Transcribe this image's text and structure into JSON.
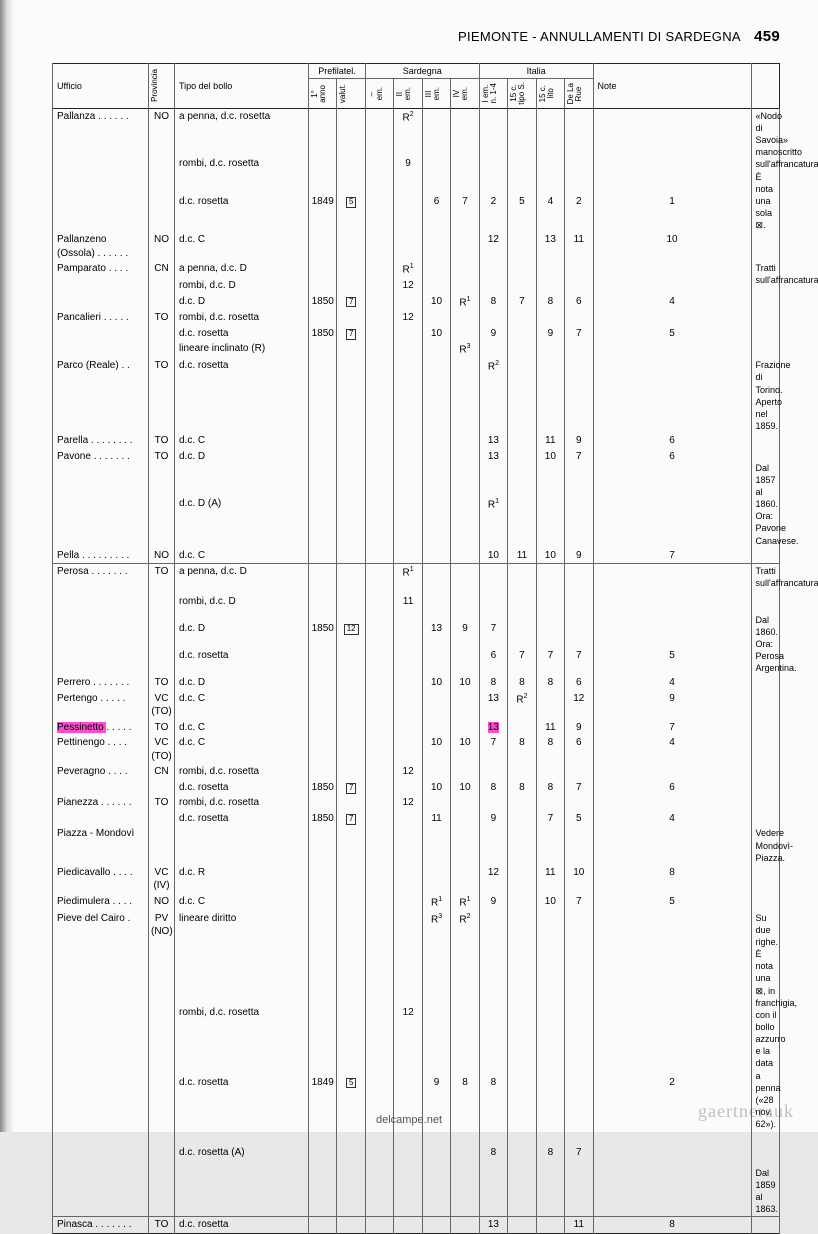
{
  "header": {
    "title": "PIEMONTE - ANNULLAMENTI DI SARDEGNA",
    "page": "459"
  },
  "columns": {
    "ufficio": "Ufficio",
    "provincia": "Provincia",
    "tipo": "Tipo del bollo",
    "prefilatel": "Prefilatel.",
    "sardegna": "Sardegna",
    "italia": "Italia",
    "note": "Note",
    "anno": "1°\nanno",
    "valut": "valut.",
    "em_dash": "–\nem.",
    "em2": "II\nem.",
    "em3": "III\nem.",
    "em4": "IV\nem.",
    "iem": "I em.\nn. 1-4",
    "c15s": "15 c.\ntipo S.",
    "c15l": "15 c.\nlito",
    "delarue": "De La\nRue"
  },
  "rows": [
    {
      "uff": "Pallanza  . . . . . .",
      "prov": "NO",
      "tipo": [
        "a penna, d.c. rosetta",
        "",
        "rombi, d.c. rosetta",
        "d.c. rosetta"
      ],
      "anno": [
        "",
        "",
        "",
        "1849"
      ],
      "valut": [
        "",
        "",
        "",
        "[5]"
      ],
      "c": [
        [
          "",
          "R²",
          "",
          "",
          "",
          "",
          "",
          "",
          "",
          ""
        ],
        [
          "",
          "",
          "",
          "",
          "",
          "",
          "",
          "",
          "",
          ""
        ],
        [
          "",
          "9",
          "",
          "",
          "",
          "",
          "",
          "",
          "",
          ""
        ],
        [
          "",
          "",
          "6",
          "7",
          "2",
          "5",
          "4",
          "2",
          "1",
          ""
        ]
      ],
      "note": "«Nodo di Savoia» manoscritto sull'affrancatura.\nÈ nota una sola ⊠."
    },
    {
      "uff": "Pallanzeno\n(Ossola)  . . . . . .",
      "prov": "NO",
      "tipo": [
        "d.c. C"
      ],
      "anno": [
        ""
      ],
      "valut": [
        ""
      ],
      "c": [
        [
          "",
          "",
          "",
          "",
          "12",
          "",
          "13",
          "11",
          "10",
          ""
        ]
      ],
      "note": ""
    },
    {
      "uff": "Pamparato  . . . .",
      "prov": "CN",
      "tipo": [
        "a penna, d.c. D",
        "rombi, d.c. D",
        "d.c. D"
      ],
      "anno": [
        "",
        "",
        "1850"
      ],
      "valut": [
        "",
        "",
        "[7]"
      ],
      "c": [
        [
          "",
          "R¹",
          "",
          "",
          "",
          "",
          "",
          "",
          "",
          ""
        ],
        [
          "",
          "12",
          "",
          "",
          "",
          "",
          "",
          "",
          "",
          ""
        ],
        [
          "",
          "",
          "10",
          "R¹",
          "8",
          "7",
          "8",
          "6",
          "4",
          ""
        ]
      ],
      "note": "Tratti sull'affrancatura."
    },
    {
      "uff": "Pancalieri  . . . . .",
      "prov": "TO",
      "tipo": [
        "rombi, d.c. rosetta",
        "d.c. rosetta",
        "lineare inclinato (R)"
      ],
      "anno": [
        "",
        "1850",
        ""
      ],
      "valut": [
        "",
        "[7]",
        ""
      ],
      "c": [
        [
          "",
          "12",
          "",
          "",
          "",
          "",
          "",
          "",
          "",
          ""
        ],
        [
          "",
          "",
          "10",
          "",
          "9",
          "",
          "9",
          "7",
          "5",
          ""
        ],
        [
          "",
          "",
          "",
          "R³",
          "",
          "",
          "",
          "",
          "",
          ""
        ]
      ],
      "note": ""
    },
    {
      "uff": "Parco (Reale)  . .",
      "prov": "TO",
      "tipo": [
        "d.c. rosetta"
      ],
      "anno": [
        ""
      ],
      "valut": [
        ""
      ],
      "c": [
        [
          "",
          "",
          "",
          "",
          "R²",
          "",
          "",
          "",
          "",
          ""
        ]
      ],
      "note": "Frazione di Torino.\nAperto nel 1859."
    },
    {
      "uff": "Parella . . . . . . . .",
      "prov": "TO",
      "tipo": [
        "d.c. C"
      ],
      "anno": [
        ""
      ],
      "valut": [
        ""
      ],
      "c": [
        [
          "",
          "",
          "",
          "",
          "13",
          "",
          "11",
          "9",
          "6",
          ""
        ]
      ],
      "note": ""
    },
    {
      "uff": "Pavone  . . . . . . .",
      "prov": "TO",
      "tipo": [
        "d.c. D",
        "d.c. D (A)"
      ],
      "anno": [
        "",
        ""
      ],
      "valut": [
        "",
        ""
      ],
      "c": [
        [
          "",
          "",
          "",
          "",
          "13",
          "",
          "10",
          "7",
          "6",
          ""
        ],
        [
          "",
          "",
          "",
          "",
          "R¹",
          "",
          "",
          "",
          "",
          ""
        ]
      ],
      "note": "\nDal 1857 al 1860.\nOra: Pavone Canavese."
    },
    {
      "uff": "Pella  . . . . . . . . .",
      "prov": "NO",
      "tipo": [
        "d.c. C"
      ],
      "anno": [
        ""
      ],
      "valut": [
        ""
      ],
      "c": [
        [
          "",
          "",
          "",
          "",
          "10",
          "11",
          "10",
          "9",
          "7",
          ""
        ]
      ],
      "note": ""
    },
    {
      "sep": true,
      "uff": "Perosa  . . . . . . .",
      "prov": "TO",
      "tipo": [
        "a penna, d.c. D",
        "rombi, d.c. D",
        "d.c. D",
        "d.c. rosetta"
      ],
      "anno": [
        "",
        "",
        "1850",
        ""
      ],
      "valut": [
        "",
        "",
        "[12]",
        ""
      ],
      "c": [
        [
          "",
          "R¹",
          "",
          "",
          "",
          "",
          "",
          "",
          "",
          ""
        ],
        [
          "",
          "11",
          "",
          "",
          "",
          "",
          "",
          "",
          "",
          ""
        ],
        [
          "",
          "",
          "13",
          "9",
          "7",
          "",
          "",
          "",
          "",
          ""
        ],
        [
          "",
          "",
          "",
          "",
          "6",
          "7",
          "7",
          "7",
          "5",
          ""
        ]
      ],
      "note": "Tratti sull'affrancatura.\n\n\nDal 1860.\nOra: Perosa Argentina."
    },
    {
      "uff": "Perrero  . . . . . . .",
      "prov": "TO",
      "tipo": [
        "d.c. D"
      ],
      "anno": [
        ""
      ],
      "valut": [
        ""
      ],
      "c": [
        [
          "",
          "",
          "10",
          "10",
          "8",
          "8",
          "8",
          "6",
          "4",
          ""
        ]
      ],
      "note": ""
    },
    {
      "uff": "Pertengo  . . . . .",
      "prov": "VC\n(TO)",
      "tipo": [
        "d.c. C"
      ],
      "anno": [
        ""
      ],
      "valut": [
        ""
      ],
      "c": [
        [
          "",
          "",
          "",
          "",
          "13",
          "R²",
          "",
          "12",
          "9",
          ""
        ]
      ],
      "note": ""
    },
    {
      "uff": "Pessinetto . . . . .",
      "prov": "TO",
      "tipo": [
        "d.c. C"
      ],
      "anno": [
        ""
      ],
      "valut": [
        ""
      ],
      "c": [
        [
          "",
          "",
          "",
          "",
          "13",
          "",
          "11",
          "9",
          "7",
          ""
        ]
      ],
      "note": "",
      "hl": {
        "uff": true,
        "colIdx": 4
      }
    },
    {
      "uff": "Pettinengo . . . .",
      "prov": "VC\n(TO)",
      "tipo": [
        "d.c. C"
      ],
      "anno": [
        ""
      ],
      "valut": [
        ""
      ],
      "c": [
        [
          "",
          "",
          "10",
          "10",
          "7",
          "8",
          "8",
          "6",
          "4",
          ""
        ]
      ],
      "note": ""
    },
    {
      "uff": "Peveragno  . . . .",
      "prov": "CN",
      "tipo": [
        "rombi, d.c. rosetta",
        "d.c. rosetta"
      ],
      "anno": [
        "",
        "1850"
      ],
      "valut": [
        "",
        "[7]"
      ],
      "c": [
        [
          "",
          "12",
          "",
          "",
          "",
          "",
          "",
          "",
          "",
          ""
        ],
        [
          "",
          "",
          "10",
          "10",
          "8",
          "8",
          "8",
          "7",
          "6",
          ""
        ]
      ],
      "note": ""
    },
    {
      "uff": "Pianezza . . . . . .",
      "prov": "TO",
      "tipo": [
        "rombi, d.c. rosetta",
        "d.c. rosetta"
      ],
      "anno": [
        "",
        "1850"
      ],
      "valut": [
        "",
        "[7]"
      ],
      "c": [
        [
          "",
          "12",
          "",
          "",
          "",
          "",
          "",
          "",
          "",
          ""
        ],
        [
          "",
          "",
          "11",
          "",
          "9",
          "",
          "7",
          "5",
          "4",
          ""
        ]
      ],
      "note": ""
    },
    {
      "uff": "Piazza - Mondovì",
      "prov": "",
      "tipo": [
        ""
      ],
      "anno": [
        ""
      ],
      "valut": [
        ""
      ],
      "c": [
        [
          "",
          "",
          "",
          "",
          "",
          "",
          "",
          "",
          "",
          ""
        ]
      ],
      "note": "Vedere Mondovì-Piazza."
    },
    {
      "uff": "Piedicavallo . . . .",
      "prov": "VC\n(IV)",
      "tipo": [
        "d.c. R"
      ],
      "anno": [
        ""
      ],
      "valut": [
        ""
      ],
      "c": [
        [
          "",
          "",
          "",
          "",
          "12",
          "",
          "11",
          "10",
          "8",
          ""
        ]
      ],
      "note": ""
    },
    {
      "uff": "Piedimulera . . . .",
      "prov": "NO",
      "tipo": [
        "d.c. C"
      ],
      "anno": [
        ""
      ],
      "valut": [
        ""
      ],
      "c": [
        [
          "",
          "",
          "R¹",
          "R¹",
          "9",
          "",
          "10",
          "7",
          "5",
          ""
        ]
      ],
      "note": ""
    },
    {
      "uff": "Pieve del Cairo  .",
      "prov": "PV\n(NO)",
      "tipo": [
        "lineare diritto",
        "",
        "",
        "rombi, d.c. rosetta",
        "d.c. rosetta",
        "d.c. rosetta (A)"
      ],
      "anno": [
        "",
        "",
        "",
        "",
        "1849",
        ""
      ],
      "valut": [
        "",
        "",
        "",
        "",
        "[5]",
        ""
      ],
      "c": [
        [
          "",
          "",
          "R³",
          "R²",
          "",
          "",
          "",
          "",
          "",
          ""
        ],
        [
          "",
          "",
          "",
          "",
          "",
          "",
          "",
          "",
          "",
          ""
        ],
        [
          "",
          "",
          "",
          "",
          "",
          "",
          "",
          "",
          "",
          ""
        ],
        [
          "",
          "12",
          "",
          "",
          "",
          "",
          "",
          "",
          "",
          ""
        ],
        [
          "",
          "",
          "9",
          "8",
          "8",
          "",
          "",
          "",
          "2",
          ""
        ],
        [
          "",
          "",
          "",
          "",
          "8",
          "",
          "8",
          "7",
          "",
          ""
        ]
      ],
      "note": "Su due righe.\nÈ nota una ⊠, in franchigia, con il bollo azzurro e la data a penna («28 nov. 62»).\n\n\n\nDal 1859 al 1863."
    },
    {
      "sep": true,
      "uff": "Pinasca . . . . . . .",
      "prov": "TO",
      "tipo": [
        "d.c. rosetta"
      ],
      "anno": [
        ""
      ],
      "valut": [
        ""
      ],
      "c": [
        [
          "",
          "",
          "",
          "",
          "13",
          "",
          "",
          "11",
          "8",
          ""
        ]
      ],
      "note": ""
    }
  ],
  "footer": "delcampe.net",
  "watermark": "gaertnerauk"
}
